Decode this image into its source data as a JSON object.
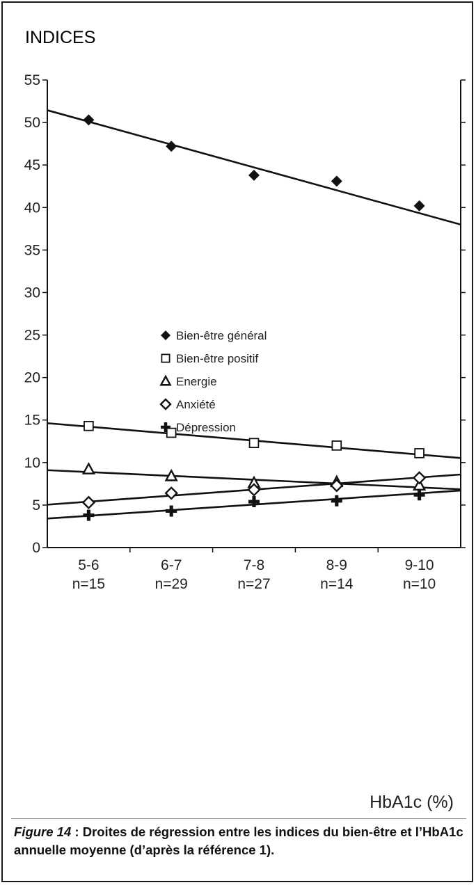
{
  "chart_data": {
    "type": "line",
    "title": "INDICES",
    "xlabel": "HbA1c (%)",
    "ylabel": "INDICES",
    "ylim": [
      0,
      55
    ],
    "yticks": [
      0,
      5,
      10,
      15,
      20,
      25,
      30,
      35,
      40,
      45,
      50,
      55
    ],
    "categories": [
      "5-6",
      "6-7",
      "7-8",
      "8-9",
      "9-10"
    ],
    "category_n": [
      "n=15",
      "n=29",
      "n=27",
      "n=14",
      "n=10"
    ],
    "series": [
      {
        "name": "Bien-être général",
        "marker": "filled-diamond",
        "values": [
          50.3,
          47.2,
          43.8,
          43.1,
          40.2
        ],
        "trend": [
          50.2,
          47.4,
          44.6,
          41.9,
          39.5
        ]
      },
      {
        "name": "Bien-être positif",
        "marker": "open-square",
        "values": [
          14.3,
          13.5,
          12.3,
          12.0,
          11.1
        ],
        "trend": [
          14.3,
          13.4,
          12.5,
          11.6,
          11.1
        ]
      },
      {
        "name": "Energie",
        "marker": "open-triangle",
        "values": [
          9.2,
          8.4,
          7.6,
          7.7,
          7.3
        ],
        "trend": [
          8.9,
          8.4,
          8.0,
          7.5,
          7.1
        ]
      },
      {
        "name": "Anxiété",
        "marker": "open-diamond",
        "values": [
          5.3,
          6.4,
          6.8,
          7.3,
          8.2
        ],
        "trend": [
          5.4,
          6.1,
          6.8,
          7.6,
          8.2
        ]
      },
      {
        "name": "Dépression",
        "marker": "plus",
        "values": [
          3.8,
          4.3,
          5.4,
          5.5,
          6.2
        ],
        "trend": [
          3.7,
          4.4,
          5.1,
          5.8,
          6.3
        ]
      }
    ],
    "legend_position": "center",
    "grid": false
  },
  "caption": {
    "figure_label": "Figure 14",
    "text": " : Droites de régression entre les indices du bien-être et l’HbA1c annuelle moyenne (d’après la référence 1)."
  },
  "colors": {
    "ink": "#111111",
    "frame": "#1a1a1a",
    "separator": "#9a9a9a"
  }
}
